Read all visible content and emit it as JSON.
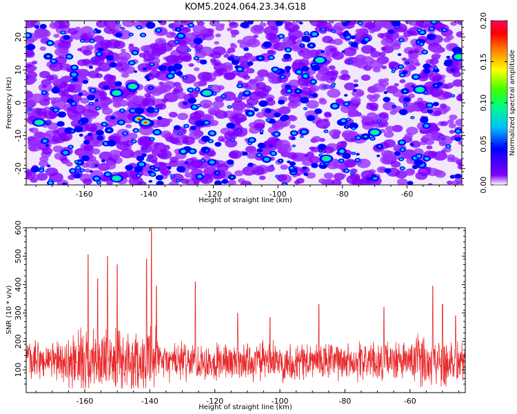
{
  "title": "KOM5.2024.064.23.34.G18",
  "chart_data": [
    {
      "type": "heatmap",
      "xlabel": "Height of straight line (km)",
      "ylabel": "Frequency (Hz)",
      "xlim": [
        -178,
        -43
      ],
      "ylim": [
        -25,
        25
      ],
      "xticks": [
        -160,
        -140,
        -120,
        -100,
        -80,
        -60
      ],
      "yticks": [
        -20,
        -10,
        0,
        10,
        20
      ],
      "colorbar": {
        "label": "Normalized spectral amplitude",
        "range": [
          0.0,
          0.2
        ],
        "ticks": [
          "0.00",
          "0.05",
          "0.10",
          "0.15",
          "0.20"
        ],
        "colors": [
          "#ffffff",
          "#8000ff",
          "#0000ff",
          "#00c0ff",
          "#00ff80",
          "#40ff00",
          "#ffff00",
          "#ff8000",
          "#ff0000",
          "#ff0060"
        ]
      },
      "hotspots": [
        {
          "x": -143,
          "y": -5,
          "value": 0.2
        },
        {
          "x": -141,
          "y": -6,
          "value": 0.17
        },
        {
          "x": -145,
          "y": 5,
          "value": 0.1
        },
        {
          "x": -150,
          "y": 3,
          "value": 0.09
        },
        {
          "x": -174,
          "y": -6,
          "value": 0.1
        },
        {
          "x": -87,
          "y": 13,
          "value": 0.09
        },
        {
          "x": -44,
          "y": 14,
          "value": 0.1
        },
        {
          "x": -70,
          "y": -9,
          "value": 0.09
        },
        {
          "x": -122,
          "y": 3,
          "value": 0.08
        },
        {
          "x": -56,
          "y": 4,
          "value": 0.08
        },
        {
          "x": -150,
          "y": -23,
          "value": 0.08
        },
        {
          "x": -85,
          "y": -17,
          "value": 0.07
        }
      ]
    },
    {
      "type": "line",
      "xlabel": "Height of straight line (km)",
      "ylabel": "SNR (10 * v/v)",
      "xlim": [
        -178,
        -43
      ],
      "ylim": [
        20,
        600
      ],
      "xticks": [
        -160,
        -140,
        -120,
        -100,
        -80,
        -60
      ],
      "yticks": [
        100,
        200,
        300,
        400,
        500,
        600
      ],
      "color": "#e8292b",
      "baseline": 130,
      "peaks": [
        {
          "x": -159,
          "y": 505
        },
        {
          "x": -156,
          "y": 420
        },
        {
          "x": -153,
          "y": 500
        },
        {
          "x": -150,
          "y": 470
        },
        {
          "x": -141,
          "y": 490
        },
        {
          "x": -139.5,
          "y": 600
        },
        {
          "x": -138,
          "y": 395
        },
        {
          "x": -126,
          "y": 410
        },
        {
          "x": -113,
          "y": 300
        },
        {
          "x": -103,
          "y": 285
        },
        {
          "x": -88,
          "y": 330
        },
        {
          "x": -68,
          "y": 320
        },
        {
          "x": -53,
          "y": 395
        },
        {
          "x": -50,
          "y": 330
        },
        {
          "x": -46,
          "y": 290
        }
      ]
    }
  ]
}
